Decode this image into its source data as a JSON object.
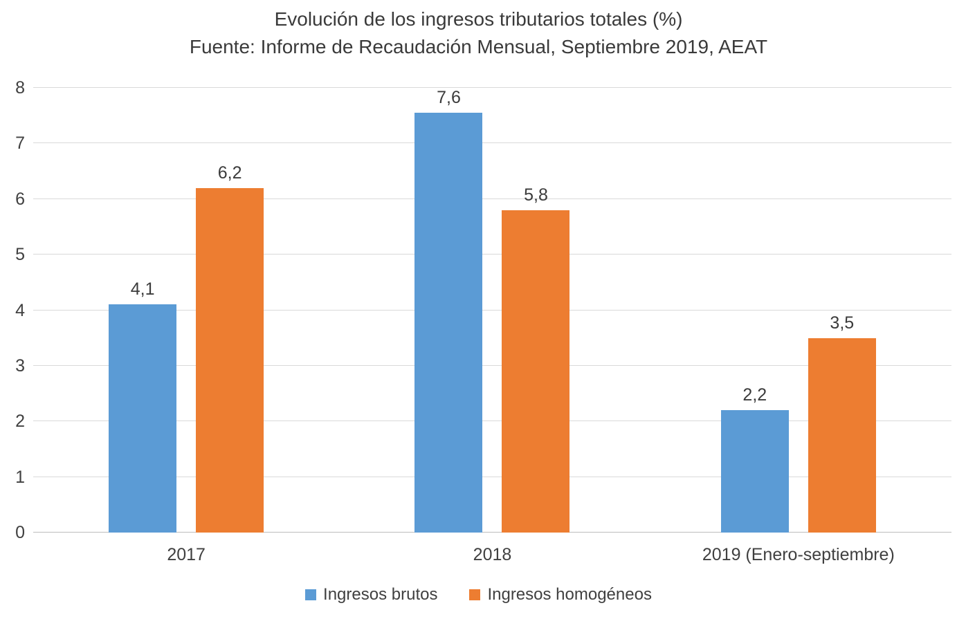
{
  "chart_data": {
    "type": "bar",
    "title": "Evolución de los ingresos tributarios totales (%)",
    "subtitle": "Fuente: Informe de Recaudación Mensual, Septiembre 2019, AEAT",
    "categories": [
      "2017",
      "2018",
      "2019 (Enero-septiembre)"
    ],
    "series": [
      {
        "name": "Ingresos brutos",
        "color": "#5b9bd5",
        "values": [
          4.1,
          7.6,
          2.2
        ],
        "labels": [
          "4,1",
          "7,6",
          "2,2"
        ]
      },
      {
        "name": "Ingresos homogéneos",
        "color": "#ed7d31",
        "values": [
          6.2,
          5.8,
          3.5
        ],
        "labels": [
          "6,2",
          "5,8",
          "3,5"
        ]
      }
    ],
    "ylim": [
      0,
      8
    ],
    "ytick_step": 1,
    "yticks": [
      "0",
      "1",
      "2",
      "3",
      "4",
      "5",
      "6",
      "7",
      "8"
    ],
    "grid": true,
    "legend_position": "bottom",
    "decimal_separator": ",",
    "colors": {
      "gridline": "#d9d9d9",
      "axis_line": "#bdbdbd",
      "text": "#404040",
      "title_text": "#3a3a3a",
      "background": "#ffffff"
    }
  }
}
